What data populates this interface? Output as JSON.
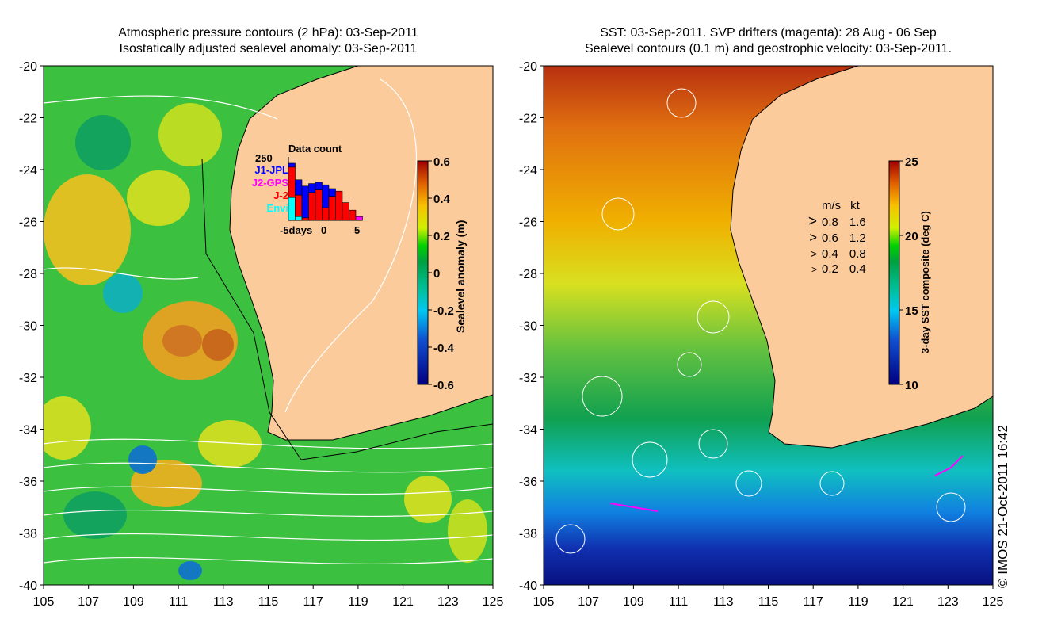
{
  "left_panel": {
    "title_line1": "Atmospheric pressure contours (2 hPa): 03-Sep-2011",
    "title_line2": "Isostatically adjusted sealevel anomaly: 03-Sep-2011",
    "colorbar": {
      "label": "Sealevel anomaly (m)",
      "ticks": [
        "0.6",
        "0.4",
        "0.2",
        "0",
        "-0.2",
        "-0.4",
        "-0.6"
      ],
      "range": [
        -0.6,
        0.6
      ]
    },
    "data_count": {
      "title": "Data count",
      "ymax_label": "250",
      "ymax": 250,
      "x_labels": [
        "-5days",
        "0",
        "5"
      ],
      "legend": [
        {
          "name": "J1-JPL",
          "color": "#0000ff"
        },
        {
          "name": "J2-GPS",
          "color": "#ff00ff"
        },
        {
          "name": "J-2",
          "color": "#ff0000"
        },
        {
          "name": "Envi",
          "color": "#00ffff"
        }
      ],
      "bars": [
        {
          "Envi": 90,
          "J-2": 120,
          "J2-GPS": 0,
          "J1-JPL": 15
        },
        {
          "Envi": 15,
          "J-2": 85,
          "J2-GPS": 0,
          "J1-JPL": 60
        },
        {
          "Envi": 0,
          "J-2": 10,
          "J2-GPS": 0,
          "J1-JPL": 125
        },
        {
          "Envi": 0,
          "J-2": 110,
          "J2-GPS": 0,
          "J1-JPL": 35
        },
        {
          "Envi": 0,
          "J-2": 120,
          "J2-GPS": 0,
          "J1-JPL": 30
        },
        {
          "Envi": 0,
          "J-2": 50,
          "J2-GPS": 0,
          "J1-JPL": 90
        },
        {
          "Envi": 0,
          "J-2": 95,
          "J2-GPS": 0,
          "J1-JPL": 30
        },
        {
          "Envi": 0,
          "J-2": 115,
          "J2-GPS": 0,
          "J1-JPL": 0
        },
        {
          "Envi": 0,
          "J-2": 70,
          "J2-GPS": 0,
          "J1-JPL": 0
        },
        {
          "Envi": 0,
          "J-2": 40,
          "J2-GPS": 0,
          "J1-JPL": 0
        },
        {
          "Envi": 0,
          "J-2": 0,
          "J2-GPS": 15,
          "J1-JPL": 0
        }
      ]
    }
  },
  "right_panel": {
    "title_line1": "SST: 03-Sep-2011. SVP drifters (magenta): 28 Aug - 06 Sep",
    "title_line2": "Sealevel contours (0.1 m) and geostrophic velocity: 03-Sep-2011.",
    "colorbar": {
      "label": "3-day SST composite (deg C)",
      "ticks": [
        "25",
        "20",
        "15",
        "10"
      ],
      "range": [
        10,
        25
      ]
    },
    "velocity_legend": {
      "headers": [
        "m/s",
        "kt"
      ],
      "rows": [
        [
          "0.8",
          "1.6"
        ],
        [
          "0.6",
          "1.2"
        ],
        [
          "0.4",
          "0.8"
        ],
        [
          "0.2",
          "0.4"
        ]
      ]
    }
  },
  "axes": {
    "lat_labels": [
      "-20",
      "-22",
      "-24",
      "-26",
      "-28",
      "-30",
      "-32",
      "-34",
      "-36",
      "-38",
      "-40"
    ],
    "lon_labels": [
      "105",
      "107",
      "109",
      "111",
      "113",
      "115",
      "117",
      "119",
      "121",
      "123",
      "125"
    ]
  },
  "credit": "© IMOS 21-Oct-2011 16:42",
  "colors": {
    "land": "#fccb9b",
    "drifters": "#ff00ff"
  }
}
